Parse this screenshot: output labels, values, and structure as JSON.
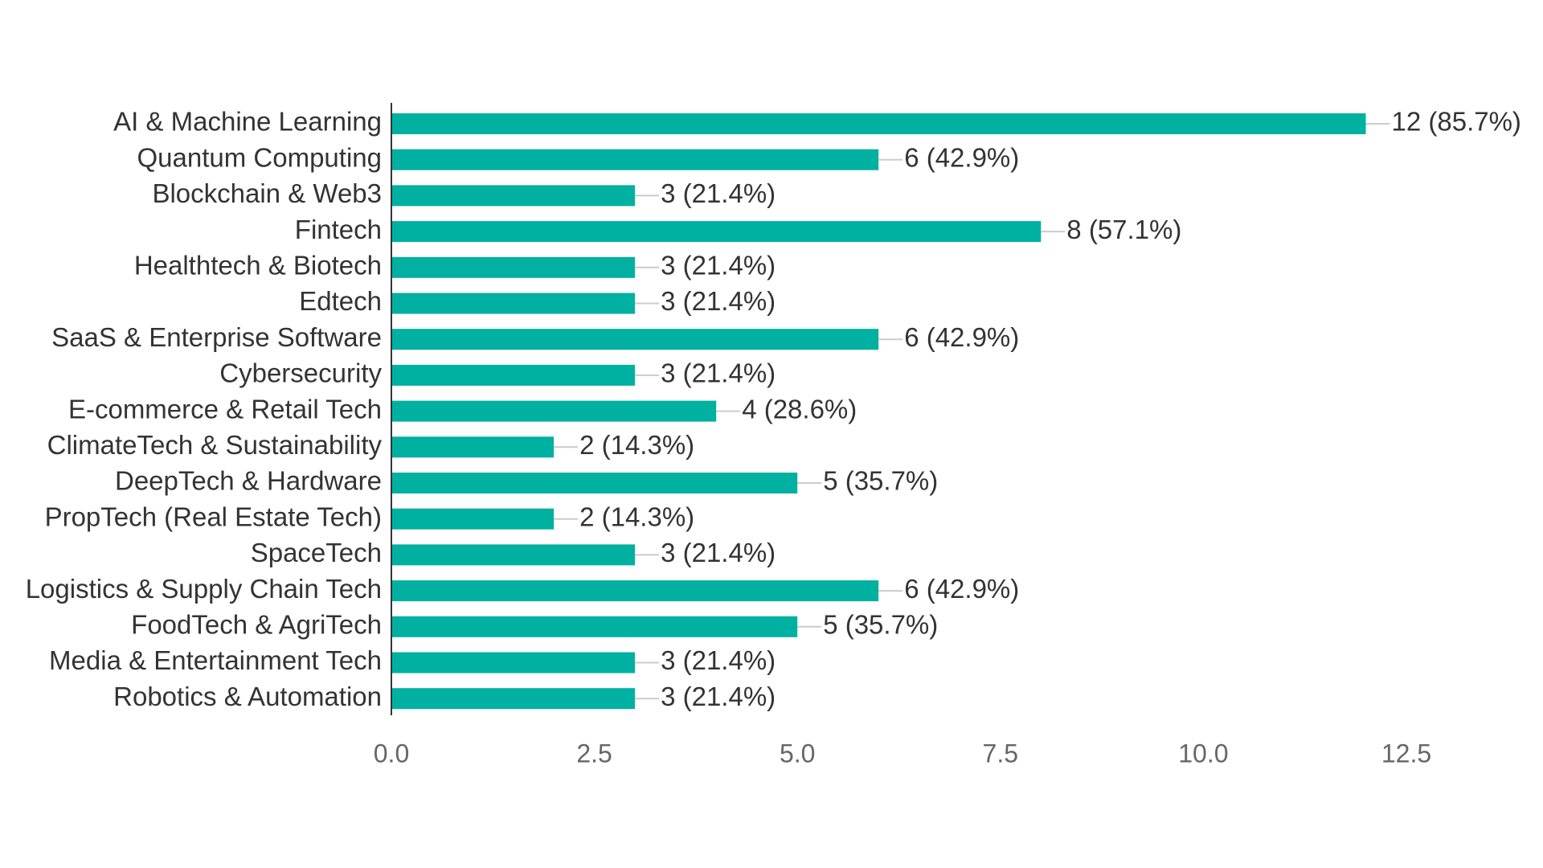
{
  "chart_data": {
    "type": "bar",
    "orientation": "horizontal",
    "title": "",
    "xlabel": "",
    "ylabel": "",
    "xlim": [
      0,
      12.5
    ],
    "ticks": [
      "0.0",
      "2.5",
      "5.0",
      "7.5",
      "10.0",
      "12.5"
    ],
    "tick_values": [
      0,
      2.5,
      5,
      7.5,
      10,
      12.5
    ],
    "grid": false,
    "legend": "none",
    "bar_color": "#00b0a0",
    "categories": [
      "AI & Machine Learning",
      "Quantum Computing",
      "Blockchain & Web3",
      "Fintech",
      "Healthtech & Biotech",
      "Edtech",
      "SaaS & Enterprise Software",
      "Cybersecurity",
      "E-commerce & Retail Tech",
      "ClimateTech & Sustainability",
      "DeepTech & Hardware",
      "PropTech (Real Estate Tech)",
      "SpaceTech",
      "Logistics & Supply Chain Tech",
      "FoodTech & AgriTech",
      "Media & Entertainment Tech",
      "Robotics & Automation"
    ],
    "values": [
      12,
      6,
      3,
      8,
      3,
      3,
      6,
      3,
      4,
      2,
      5,
      2,
      3,
      6,
      5,
      3,
      3
    ],
    "data_labels": [
      "12 (85.7%)",
      "6 (42.9%)",
      "3 (21.4%)",
      "8 (57.1%)",
      "3 (21.4%)",
      "3 (21.4%)",
      "6 (42.9%)",
      "3 (21.4%)",
      "4 (28.6%)",
      "2 (14.3%)",
      "5 (35.7%)",
      "2 (14.3%)",
      "3 (21.4%)",
      "6 (42.9%)",
      "5 (35.7%)",
      "3 (21.4%)",
      "3 (21.4%)"
    ]
  }
}
